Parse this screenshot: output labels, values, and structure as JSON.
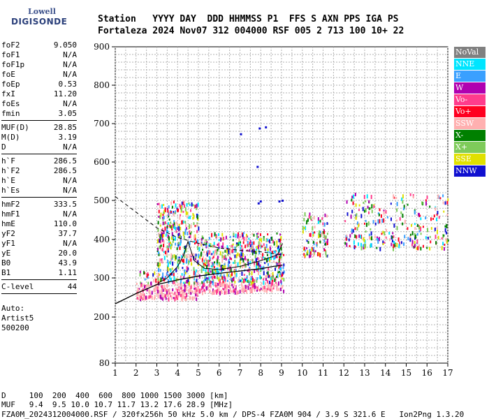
{
  "logo": {
    "line1": "Lowell",
    "line2": "DIGISONDE"
  },
  "header": {
    "labels": "Station   YYYY DAY  DDD HHMMSS P1  FFS S AXN PPS IGA PS",
    "values": "Fortaleza 2024 Nov07 312 004000 RSF 005 2 713 100 10+ 22"
  },
  "params": {
    "group1": [
      {
        "name": "foF2",
        "value": "9.050"
      },
      {
        "name": "foF1",
        "value": "N/A"
      },
      {
        "name": "foF1p",
        "value": "N/A"
      },
      {
        "name": "foE",
        "value": "N/A"
      },
      {
        "name": "foEp",
        "value": "0.53"
      },
      {
        "name": "fxI",
        "value": "11.20"
      },
      {
        "name": "foEs",
        "value": "N/A"
      },
      {
        "name": "fmin",
        "value": "3.05"
      }
    ],
    "group2": [
      {
        "name": "MUF(D)",
        "value": "28.85"
      },
      {
        "name": "M(D)",
        "value": "3.19"
      },
      {
        "name": "D",
        "value": "N/A"
      }
    ],
    "group3": [
      {
        "name": "h`F",
        "value": "286.5"
      },
      {
        "name": "h`F2",
        "value": "286.5"
      },
      {
        "name": "h`E",
        "value": "N/A"
      },
      {
        "name": "h`Es",
        "value": "N/A"
      }
    ],
    "group4": [
      {
        "name": "hmF2",
        "value": "333.5"
      },
      {
        "name": "hmF1",
        "value": "N/A"
      },
      {
        "name": "hmE",
        "value": "110.0"
      },
      {
        "name": "yF2",
        "value": "37.7"
      },
      {
        "name": "yF1",
        "value": "N/A"
      },
      {
        "name": "yE",
        "value": "20.0"
      },
      {
        "name": "B0",
        "value": "43.9"
      },
      {
        "name": "B1",
        "value": "1.11"
      }
    ],
    "group5": [
      {
        "name": "C-level",
        "value": "44"
      }
    ],
    "auto": [
      "Auto:",
      "Artist5",
      "500200"
    ]
  },
  "legend": [
    {
      "label": "NoVal",
      "color": "#808080"
    },
    {
      "label": "NNE",
      "color": "#00e5ff"
    },
    {
      "label": "E",
      "color": "#3aa0ff"
    },
    {
      "label": "W",
      "color": "#b000b0"
    },
    {
      "label": "Vo-",
      "color": "#ff3c8c"
    },
    {
      "label": "Vo+",
      "color": "#ff0020"
    },
    {
      "label": "SSW",
      "color": "#ffb0b0"
    },
    {
      "label": "X-",
      "color": "#008000"
    },
    {
      "label": "X+",
      "color": "#7ecb5a"
    },
    {
      "label": "SSE",
      "color": "#e0e000"
    },
    {
      "label": "NNW",
      "color": "#1010d0"
    }
  ],
  "bottom": {
    "d_row": "D     100  200  400  600  800 1000 1500 3000 [km]",
    "muf_row": "MUF   9.4  9.5 10.0 10.7 11.7 13.2 17.6 28.9 [MHz]",
    "footer": "FZA0M_2024312004000.RSF / 320fx256h 50 kHz 5.0 km / DPS-4 FZA0M 904 / 3.9 S 321.6 E   Ion2Png 1.3.20"
  },
  "chart_data": {
    "type": "scatter",
    "x_label": "",
    "y_label": "",
    "xlim": [
      1,
      17
    ],
    "ylim": [
      80,
      900
    ],
    "x_ticks": [
      1,
      2,
      3,
      4,
      5,
      6,
      7,
      8,
      9,
      10,
      11,
      12,
      13,
      14,
      15,
      16,
      17
    ],
    "y_ticks": [
      80,
      200,
      300,
      400,
      500,
      600,
      700,
      800,
      900
    ],
    "grid": true,
    "legend_position": "right",
    "profile_curve": [
      [
        1.0,
        234
      ],
      [
        2.0,
        260
      ],
      [
        3.0,
        283
      ],
      [
        4.0,
        295
      ],
      [
        5.0,
        305
      ],
      [
        6.0,
        312
      ],
      [
        7.0,
        318
      ],
      [
        8.0,
        324
      ],
      [
        8.6,
        330
      ],
      [
        9.05,
        333.5
      ]
    ],
    "trace_curve": [
      [
        3.05,
        286.5
      ],
      [
        3.5,
        300
      ],
      [
        4.0,
        330
      ],
      [
        4.3,
        360
      ],
      [
        4.5,
        395
      ],
      [
        4.8,
        345
      ],
      [
        5.3,
        325
      ],
      [
        6.0,
        322
      ],
      [
        7.0,
        330
      ],
      [
        8.0,
        345
      ],
      [
        8.8,
        360
      ],
      [
        9.05,
        390
      ]
    ],
    "extrapolated_dashed": [
      [
        1.0,
        510
      ],
      [
        2.0,
        470
      ],
      [
        3.0,
        430
      ],
      [
        4.0,
        405
      ],
      [
        5.0,
        390
      ],
      [
        6.0,
        378
      ],
      [
        7.0,
        372
      ],
      [
        8.0,
        368
      ],
      [
        9.05,
        360
      ]
    ],
    "echo_regions": [
      {
        "x": [
          2.0,
          3.0
        ],
        "y": [
          250,
          320
        ]
      },
      {
        "x": [
          3.0,
          5.0
        ],
        "y": [
          250,
          500
        ]
      },
      {
        "x": [
          5.0,
          7.0
        ],
        "y": [
          265,
          420
        ]
      },
      {
        "x": [
          7.0,
          9.1
        ],
        "y": [
          270,
          420
        ]
      },
      {
        "x": [
          10.0,
          11.2
        ],
        "y": [
          360,
          470
        ]
      },
      {
        "x": [
          12.0,
          17.0
        ],
        "y": [
          380,
          520
        ]
      }
    ]
  }
}
